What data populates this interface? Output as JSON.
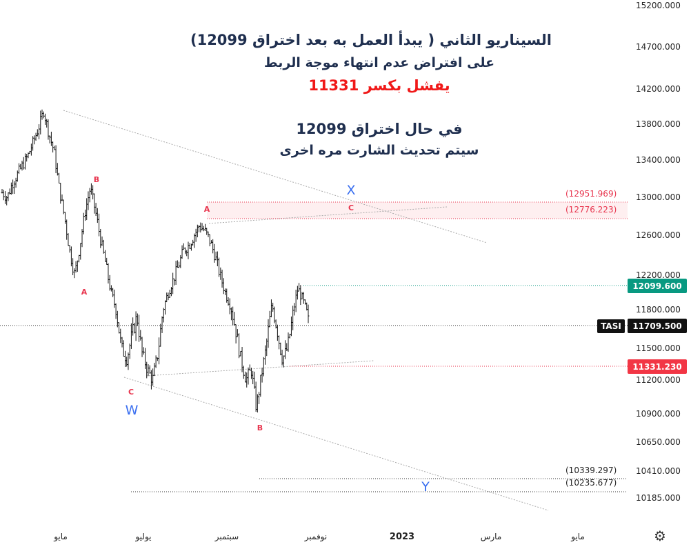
{
  "annotations": {
    "line1": "السيناريو الثاني ( يبدأ العمل به بعد اختراق 12099)",
    "line2": "على افتراض عدم انتهاء موجة الربط",
    "line3": "يفشل بكسر 11331",
    "line4": "في حال اختراق 12099",
    "line5": "سيتم تحديث الشارت مره اخرى"
  },
  "chart_data": {
    "type": "candlestick",
    "symbol": "TASI",
    "price_axis": {
      "ticks": [
        "15200.000",
        "14700.000",
        "14200.000",
        "13800.000",
        "13400.000",
        "13000.000",
        "12600.000",
        "12200.000",
        "11800.000",
        "11500.000",
        "11200.000",
        "10900.000",
        "10650.000",
        "10410.000",
        "10185.000"
      ]
    },
    "time_axis": {
      "ticks": [
        "مايو",
        "يوليو",
        "سبتمبر",
        "نوفمبر",
        "2023",
        "مارس",
        "مايو"
      ]
    },
    "last_price": {
      "label": "TASI",
      "value": "11709.500"
    },
    "levels": [
      {
        "value": "12099.600",
        "kind": "badge",
        "color": "#089981"
      },
      {
        "value": "11331.230",
        "kind": "badge",
        "color": "#f23645"
      },
      {
        "value": "(12951.969)",
        "kind": "red"
      },
      {
        "value": "(12776.223)",
        "kind": "red"
      },
      {
        "value": "(10339.297)",
        "kind": "dark"
      },
      {
        "value": "(10235.677)",
        "kind": "dark"
      }
    ],
    "wave_labels": [
      {
        "text": "B",
        "type": "small"
      },
      {
        "text": "A",
        "type": "small"
      },
      {
        "text": "C",
        "type": "small"
      },
      {
        "text": "W",
        "type": "big"
      },
      {
        "text": "A",
        "type": "small"
      },
      {
        "text": "B",
        "type": "small"
      },
      {
        "text": "X",
        "type": "big"
      },
      {
        "text": "C",
        "type": "small"
      },
      {
        "text": "Y",
        "type": "big"
      }
    ],
    "price_path": [
      13050,
      13000,
      13150,
      13250,
      13350,
      13450,
      13600,
      13750,
      13950,
      13700,
      13500,
      13100,
      12800,
      12450,
      12200,
      12500,
      12850,
      13100,
      12850,
      12550,
      12300,
      12000,
      11800,
      11500,
      11400,
      11600,
      11750,
      11450,
      11300,
      11200,
      11450,
      11800,
      12000,
      12150,
      12300,
      12450,
      12500,
      12600,
      12700,
      12650,
      12550,
      12400,
      12200,
      12000,
      11850,
      11650,
      11400,
      11200,
      11300,
      10950,
      11250,
      11550,
      11850,
      11650,
      11400,
      11500,
      11750,
      12050,
      11900,
      11710
    ],
    "price_range": [
      10100,
      15300
    ]
  }
}
